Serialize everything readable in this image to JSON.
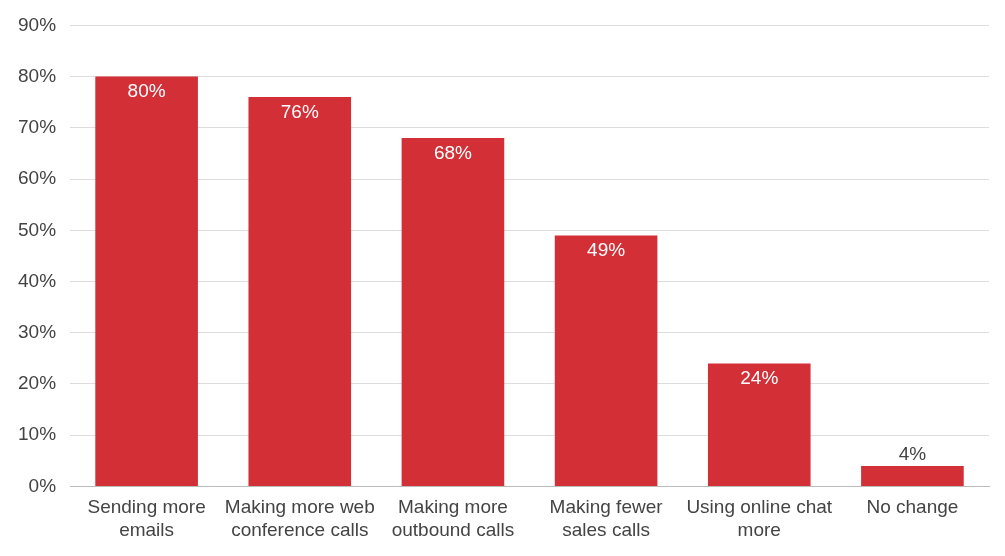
{
  "chart_data": {
    "type": "bar",
    "categories": [
      "Sending more emails",
      "Making more web conference calls",
      "Making more outbound calls",
      "Making fewer sales calls",
      "Using online chat more",
      "No change"
    ],
    "values": [
      80,
      76,
      68,
      49,
      24,
      4
    ],
    "color": "#d22f37",
    "value_labels": [
      "80%",
      "76%",
      "68%",
      "49%",
      "24%",
      "4%"
    ],
    "ylim": [
      0,
      90
    ],
    "yticks": [
      {
        "value": 0,
        "label": "0%"
      },
      {
        "value": 10,
        "label": "10%"
      },
      {
        "value": 20,
        "label": "20%"
      },
      {
        "value": 30,
        "label": "30%"
      },
      {
        "value": 40,
        "label": "40%"
      },
      {
        "value": 50,
        "label": "50%"
      },
      {
        "value": 60,
        "label": "60%"
      },
      {
        "value": 70,
        "label": "70%"
      },
      {
        "value": 80,
        "label": "80%"
      },
      {
        "value": 90,
        "label": "90%"
      }
    ],
    "grid": "y",
    "legend": false
  }
}
